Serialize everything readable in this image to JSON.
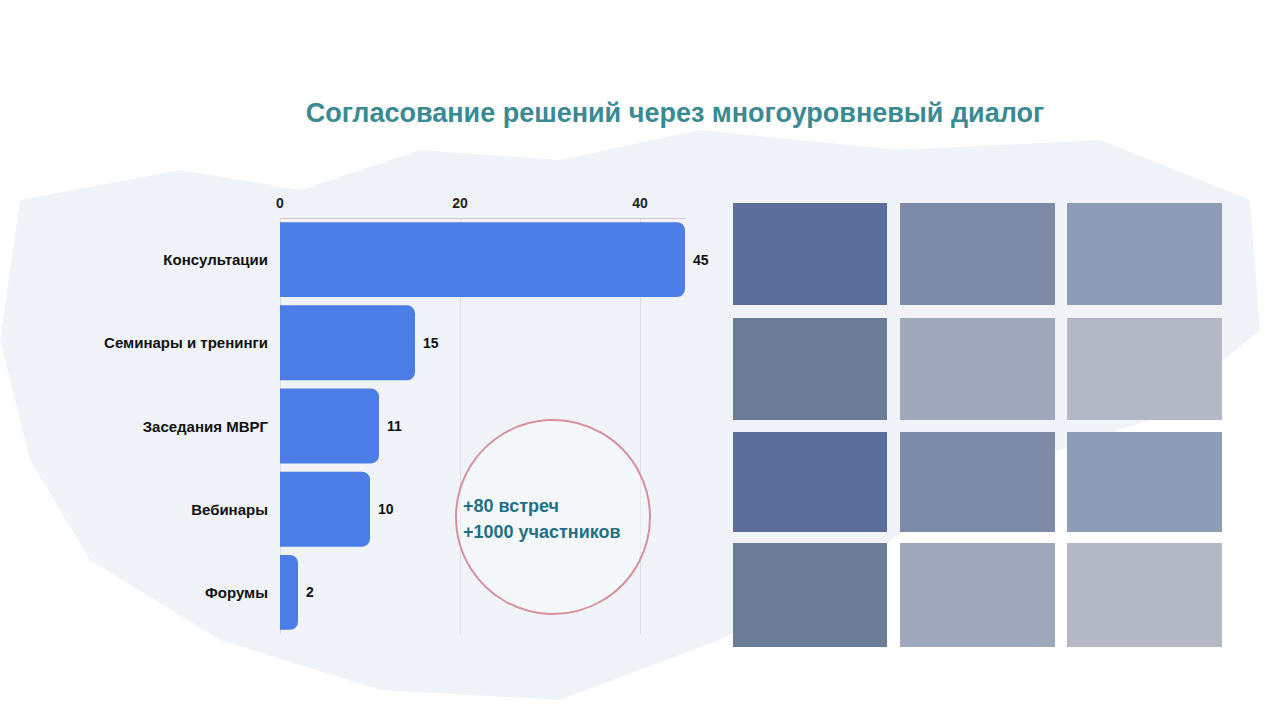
{
  "chart_data": {
    "type": "bar",
    "orientation": "horizontal",
    "title": "Согласование решений через многоуровневый диалог",
    "categories": [
      "Консультации",
      "Семинары и тренинги",
      "Заседания МВРГ",
      "Вебинары",
      "Форумы"
    ],
    "values": [
      45,
      15,
      11,
      10,
      2
    ],
    "color": "#4c7ce5",
    "xlim": [
      0,
      45
    ],
    "xticks": [
      0,
      20,
      40
    ],
    "grid": true,
    "data_labels": true,
    "annotations": [
      "+80 встреч",
      "+1000 участников"
    ]
  }
}
